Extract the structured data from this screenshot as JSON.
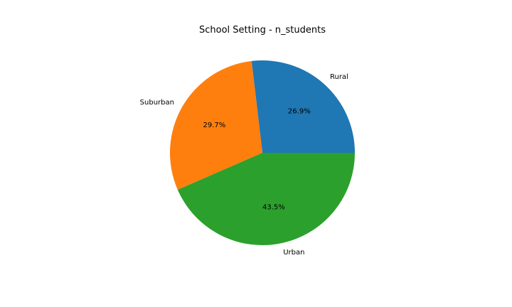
{
  "chart_data": {
    "type": "pie",
    "title": "School Setting - n_students",
    "labels": [
      "Rural",
      "Suburban",
      "Urban"
    ],
    "values": [
      26.9,
      29.7,
      43.5
    ],
    "value_labels": [
      "26.9%",
      "29.7%",
      "43.5%"
    ],
    "colors": [
      "#1f77b4",
      "#ff7f0e",
      "#2ca02c"
    ],
    "start_angle_deg": 0,
    "direction": "counterclockwise",
    "legend": "none"
  }
}
